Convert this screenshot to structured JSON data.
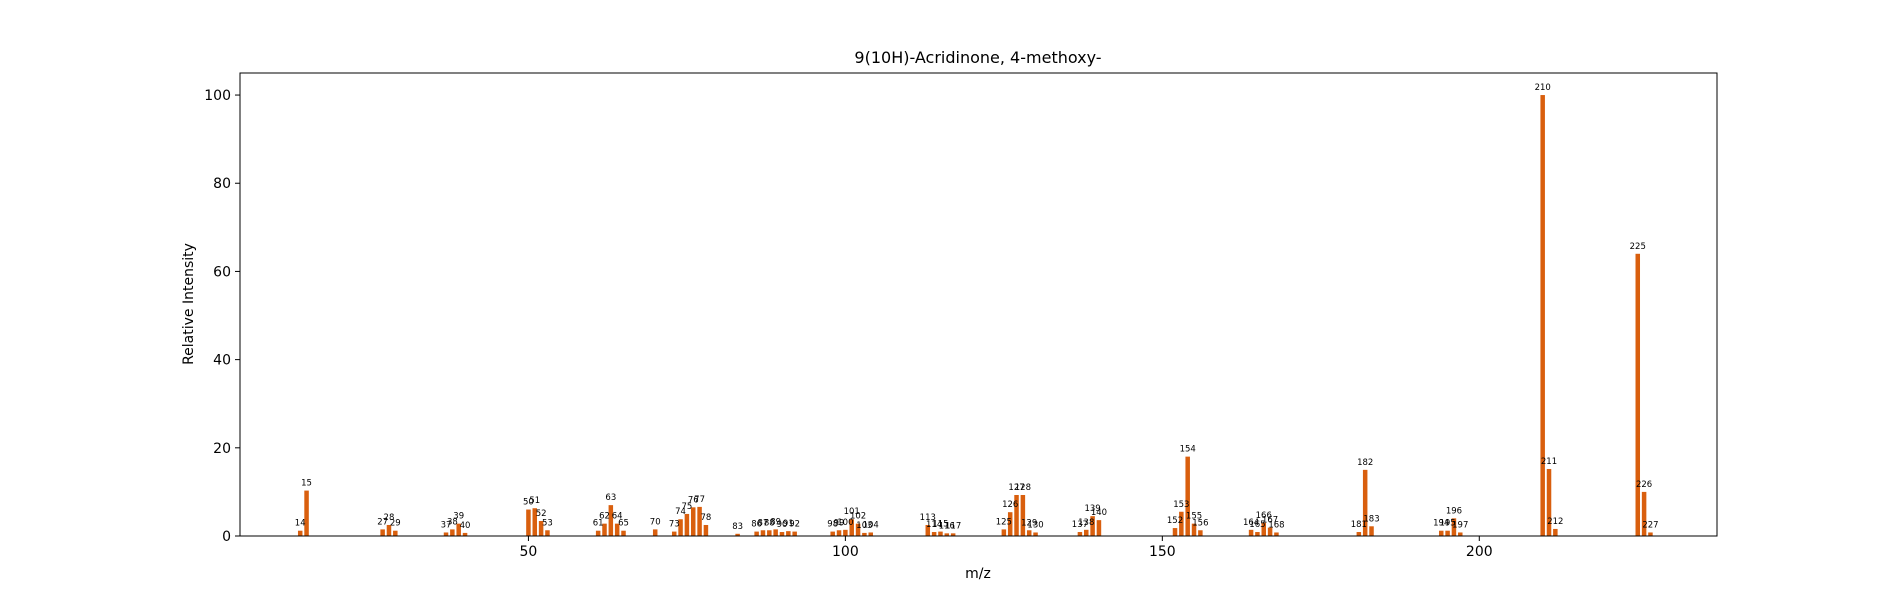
{
  "chart_data": {
    "type": "bar",
    "title": "9(10H)-Acridinone, 4-methoxy-",
    "xlabel": "m/z",
    "ylabel": "Relative Intensity",
    "xlim": [
      4.5,
      237.5
    ],
    "ylim": [
      0,
      105
    ],
    "xticks": [
      50,
      100,
      150,
      200
    ],
    "yticks": [
      0,
      20,
      40,
      60,
      80,
      100
    ],
    "color": "#d95f0e",
    "grid": false,
    "peaks": [
      {
        "x": 14,
        "y": 1.2
      },
      {
        "x": 15,
        "y": 10.3
      },
      {
        "x": 27,
        "y": 1.5
      },
      {
        "x": 28,
        "y": 2.5
      },
      {
        "x": 29,
        "y": 1.2
      },
      {
        "x": 37,
        "y": 0.8
      },
      {
        "x": 38,
        "y": 1.5
      },
      {
        "x": 39,
        "y": 2.8
      },
      {
        "x": 40,
        "y": 0.7
      },
      {
        "x": 50,
        "y": 6.0
      },
      {
        "x": 51,
        "y": 6.3
      },
      {
        "x": 52,
        "y": 3.4
      },
      {
        "x": 53,
        "y": 1.3
      },
      {
        "x": 61,
        "y": 1.2
      },
      {
        "x": 62,
        "y": 2.8
      },
      {
        "x": 63,
        "y": 7.0
      },
      {
        "x": 64,
        "y": 2.8
      },
      {
        "x": 65,
        "y": 1.2
      },
      {
        "x": 70,
        "y": 1.5
      },
      {
        "x": 73,
        "y": 1.0
      },
      {
        "x": 74,
        "y": 3.8
      },
      {
        "x": 75,
        "y": 5.0
      },
      {
        "x": 76,
        "y": 6.5
      },
      {
        "x": 77,
        "y": 6.6
      },
      {
        "x": 78,
        "y": 2.5
      },
      {
        "x": 83,
        "y": 0.5
      },
      {
        "x": 86,
        "y": 1.0
      },
      {
        "x": 87,
        "y": 1.3
      },
      {
        "x": 88,
        "y": 1.3
      },
      {
        "x": 89,
        "y": 1.5
      },
      {
        "x": 90,
        "y": 0.9
      },
      {
        "x": 91,
        "y": 1.1
      },
      {
        "x": 92,
        "y": 1.0
      },
      {
        "x": 98,
        "y": 1.0
      },
      {
        "x": 99,
        "y": 1.3
      },
      {
        "x": 100,
        "y": 1.4
      },
      {
        "x": 101,
        "y": 3.8
      },
      {
        "x": 102,
        "y": 2.8
      },
      {
        "x": 103,
        "y": 0.7
      },
      {
        "x": 104,
        "y": 0.8
      },
      {
        "x": 113,
        "y": 2.5
      },
      {
        "x": 114,
        "y": 0.9
      },
      {
        "x": 115,
        "y": 1.0
      },
      {
        "x": 116,
        "y": 0.6
      },
      {
        "x": 117,
        "y": 0.6
      },
      {
        "x": 125,
        "y": 1.5
      },
      {
        "x": 126,
        "y": 5.4
      },
      {
        "x": 127,
        "y": 9.3
      },
      {
        "x": 128,
        "y": 9.3
      },
      {
        "x": 129,
        "y": 1.3
      },
      {
        "x": 130,
        "y": 0.8
      },
      {
        "x": 137,
        "y": 0.9
      },
      {
        "x": 138,
        "y": 1.4
      },
      {
        "x": 139,
        "y": 4.5
      },
      {
        "x": 140,
        "y": 3.6
      },
      {
        "x": 152,
        "y": 1.8
      },
      {
        "x": 153,
        "y": 5.5
      },
      {
        "x": 154,
        "y": 18.0
      },
      {
        "x": 155,
        "y": 2.8
      },
      {
        "x": 156,
        "y": 1.3
      },
      {
        "x": 164,
        "y": 1.4
      },
      {
        "x": 165,
        "y": 0.9
      },
      {
        "x": 166,
        "y": 3.0
      },
      {
        "x": 167,
        "y": 1.9
      },
      {
        "x": 168,
        "y": 0.8
      },
      {
        "x": 181,
        "y": 0.9
      },
      {
        "x": 182,
        "y": 15.0
      },
      {
        "x": 183,
        "y": 2.2
      },
      {
        "x": 194,
        "y": 1.2
      },
      {
        "x": 195,
        "y": 1.2
      },
      {
        "x": 196,
        "y": 4.0
      },
      {
        "x": 197,
        "y": 0.8
      },
      {
        "x": 210,
        "y": 100.0
      },
      {
        "x": 211,
        "y": 15.2
      },
      {
        "x": 212,
        "y": 1.6
      },
      {
        "x": 225,
        "y": 64.0
      },
      {
        "x": 226,
        "y": 10.0
      },
      {
        "x": 227,
        "y": 0.8
      }
    ]
  }
}
